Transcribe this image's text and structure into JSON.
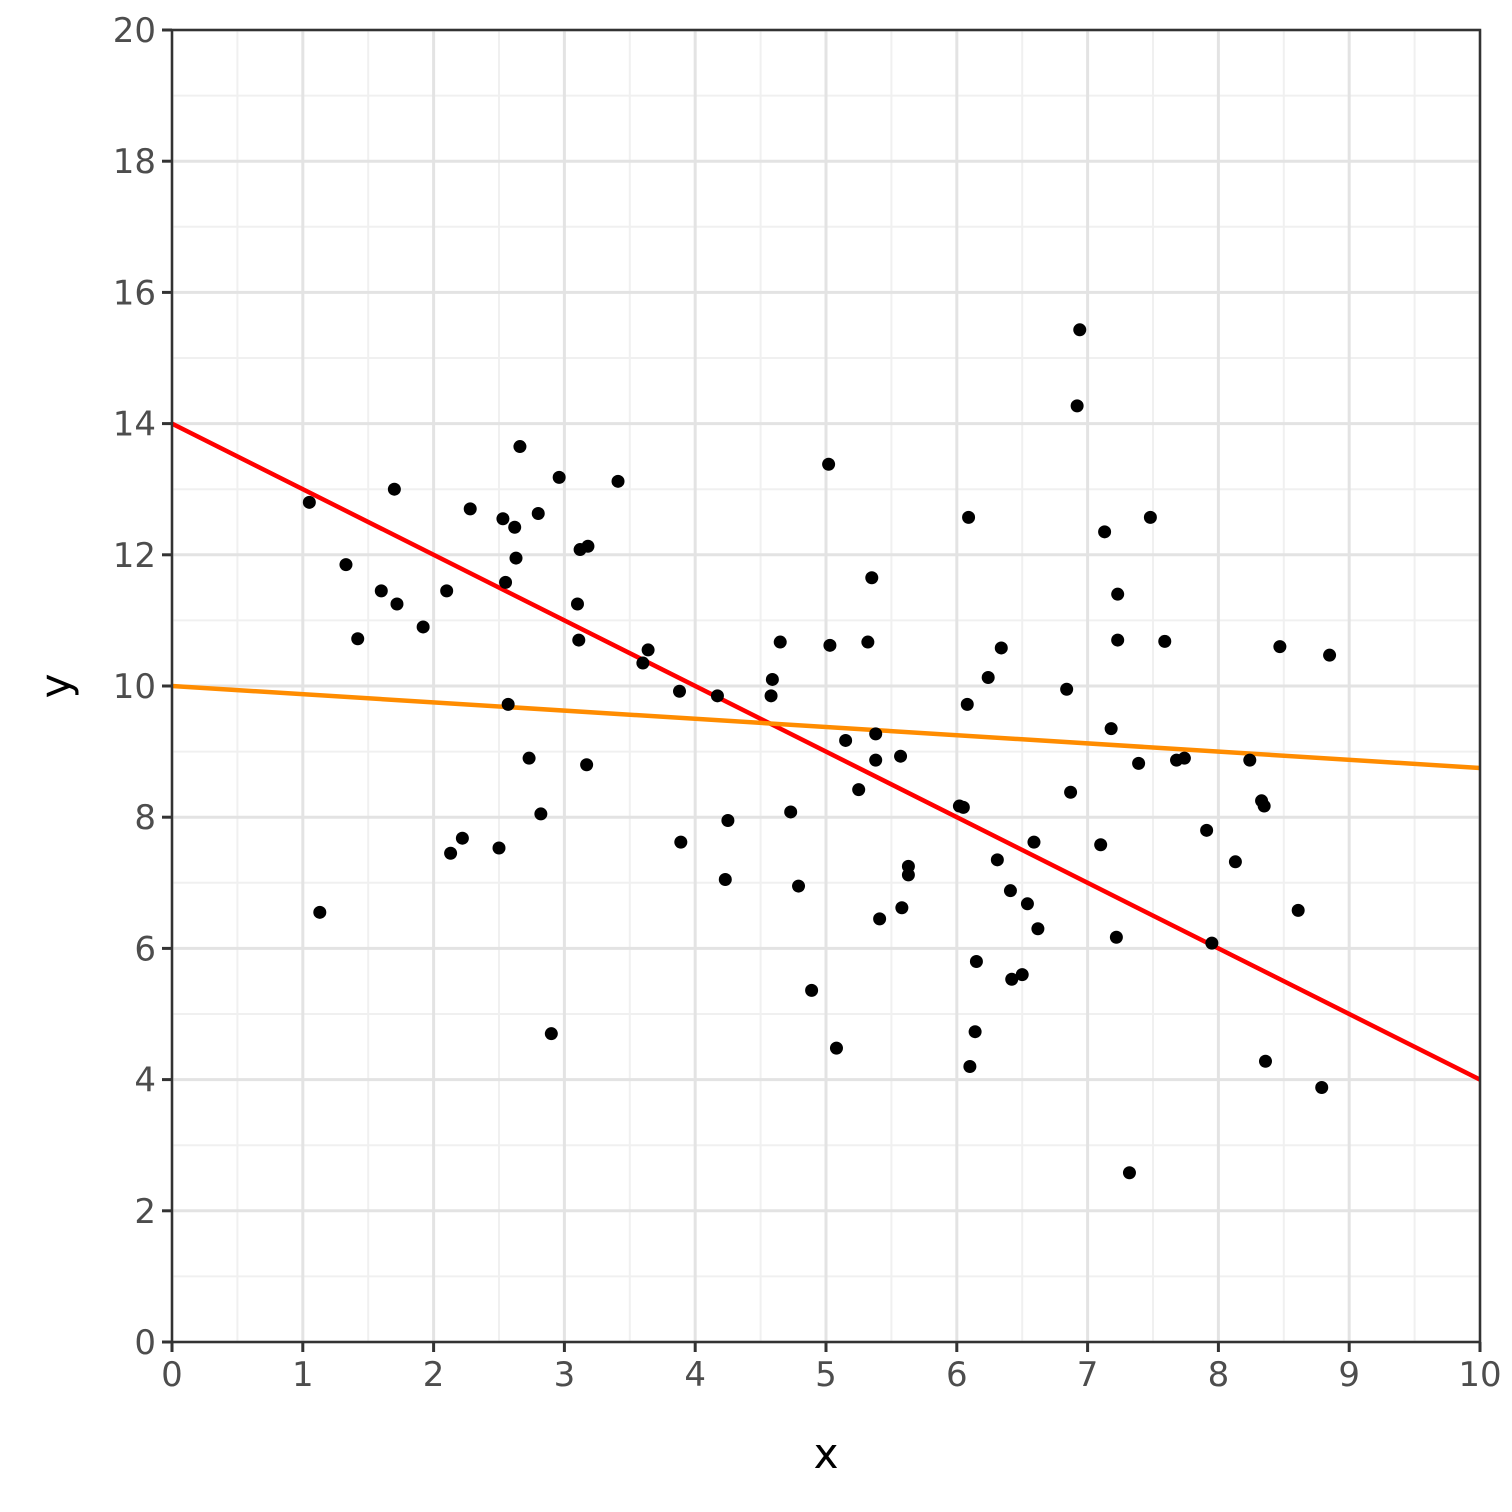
{
  "chart_data": {
    "type": "scatter",
    "title": "",
    "xlabel": "x",
    "ylabel": "y",
    "xlim": [
      0,
      10
    ],
    "ylim": [
      0,
      20
    ],
    "x_ticks": [
      0,
      1,
      2,
      3,
      4,
      5,
      6,
      7,
      8,
      9,
      10
    ],
    "y_ticks": [
      0,
      2,
      4,
      6,
      8,
      10,
      12,
      14,
      16,
      18,
      20
    ],
    "grid": true,
    "legend": "none",
    "colors": {
      "points": "#000000",
      "line_red": "#ff0000",
      "line_orange": "#ff8c00",
      "grid_major": "#e3e3e3",
      "grid_minor": "#f0f0f0",
      "axis": "#333333"
    },
    "points": [
      [
        1.05,
        12.8
      ],
      [
        1.13,
        6.55
      ],
      [
        1.33,
        11.85
      ],
      [
        1.42,
        10.72
      ],
      [
        1.6,
        11.45
      ],
      [
        1.7,
        13.0
      ],
      [
        1.72,
        11.25
      ],
      [
        1.92,
        10.9
      ],
      [
        2.1,
        11.45
      ],
      [
        2.13,
        7.45
      ],
      [
        2.22,
        7.68
      ],
      [
        2.28,
        12.7
      ],
      [
        2.5,
        7.53
      ],
      [
        2.53,
        12.55
      ],
      [
        2.55,
        11.58
      ],
      [
        2.57,
        9.72
      ],
      [
        2.62,
        12.42
      ],
      [
        2.63,
        11.95
      ],
      [
        2.66,
        13.65
      ],
      [
        2.73,
        8.9
      ],
      [
        2.8,
        12.63
      ],
      [
        2.82,
        8.05
      ],
      [
        2.9,
        4.7
      ],
      [
        2.96,
        13.18
      ],
      [
        3.1,
        11.25
      ],
      [
        3.11,
        10.7
      ],
      [
        3.12,
        12.08
      ],
      [
        3.17,
        8.8
      ],
      [
        3.18,
        12.13
      ],
      [
        3.41,
        13.12
      ],
      [
        3.6,
        10.35
      ],
      [
        3.64,
        10.55
      ],
      [
        3.88,
        9.92
      ],
      [
        3.89,
        7.62
      ],
      [
        4.17,
        9.85
      ],
      [
        4.23,
        7.05
      ],
      [
        4.25,
        7.95
      ],
      [
        4.58,
        9.85
      ],
      [
        4.59,
        10.1
      ],
      [
        4.65,
        10.67
      ],
      [
        4.73,
        8.08
      ],
      [
        4.79,
        6.95
      ],
      [
        4.89,
        5.36
      ],
      [
        5.02,
        13.38
      ],
      [
        5.03,
        10.62
      ],
      [
        5.08,
        4.48
      ],
      [
        5.15,
        9.17
      ],
      [
        5.25,
        8.42
      ],
      [
        5.32,
        10.67
      ],
      [
        5.35,
        11.65
      ],
      [
        5.38,
        9.27
      ],
      [
        5.38,
        8.87
      ],
      [
        5.41,
        6.45
      ],
      [
        5.57,
        8.93
      ],
      [
        5.58,
        6.62
      ],
      [
        5.63,
        7.12
      ],
      [
        5.63,
        7.25
      ],
      [
        6.02,
        8.17
      ],
      [
        6.05,
        8.15
      ],
      [
        6.08,
        9.72
      ],
      [
        6.09,
        12.57
      ],
      [
        6.1,
        4.2
      ],
      [
        6.14,
        4.73
      ],
      [
        6.15,
        5.8
      ],
      [
        6.24,
        10.13
      ],
      [
        6.31,
        7.35
      ],
      [
        6.34,
        10.58
      ],
      [
        6.41,
        6.88
      ],
      [
        6.42,
        5.53
      ],
      [
        6.5,
        5.6
      ],
      [
        6.54,
        6.68
      ],
      [
        6.59,
        7.62
      ],
      [
        6.62,
        6.3
      ],
      [
        6.84,
        9.95
      ],
      [
        6.87,
        8.38
      ],
      [
        6.92,
        14.27
      ],
      [
        6.94,
        15.43
      ],
      [
        7.1,
        7.58
      ],
      [
        7.13,
        12.35
      ],
      [
        7.18,
        9.35
      ],
      [
        7.22,
        6.17
      ],
      [
        7.23,
        11.4
      ],
      [
        7.23,
        10.7
      ],
      [
        7.32,
        2.58
      ],
      [
        7.39,
        8.82
      ],
      [
        7.48,
        12.57
      ],
      [
        7.59,
        10.68
      ],
      [
        7.68,
        8.87
      ],
      [
        7.74,
        8.9
      ],
      [
        7.91,
        7.8
      ],
      [
        7.95,
        6.08
      ],
      [
        8.13,
        7.32
      ],
      [
        8.24,
        8.87
      ],
      [
        8.33,
        8.25
      ],
      [
        8.35,
        8.17
      ],
      [
        8.36,
        4.28
      ],
      [
        8.47,
        10.6
      ],
      [
        8.61,
        6.58
      ],
      [
        8.79,
        3.88
      ],
      [
        8.85,
        10.47
      ]
    ],
    "series": [
      {
        "type": "line",
        "color": "#ff0000",
        "x": [
          0,
          10
        ],
        "y": [
          14,
          4
        ]
      },
      {
        "type": "line",
        "color": "#ff8c00",
        "x": [
          0,
          10
        ],
        "y": [
          10,
          8.75
        ]
      }
    ]
  }
}
